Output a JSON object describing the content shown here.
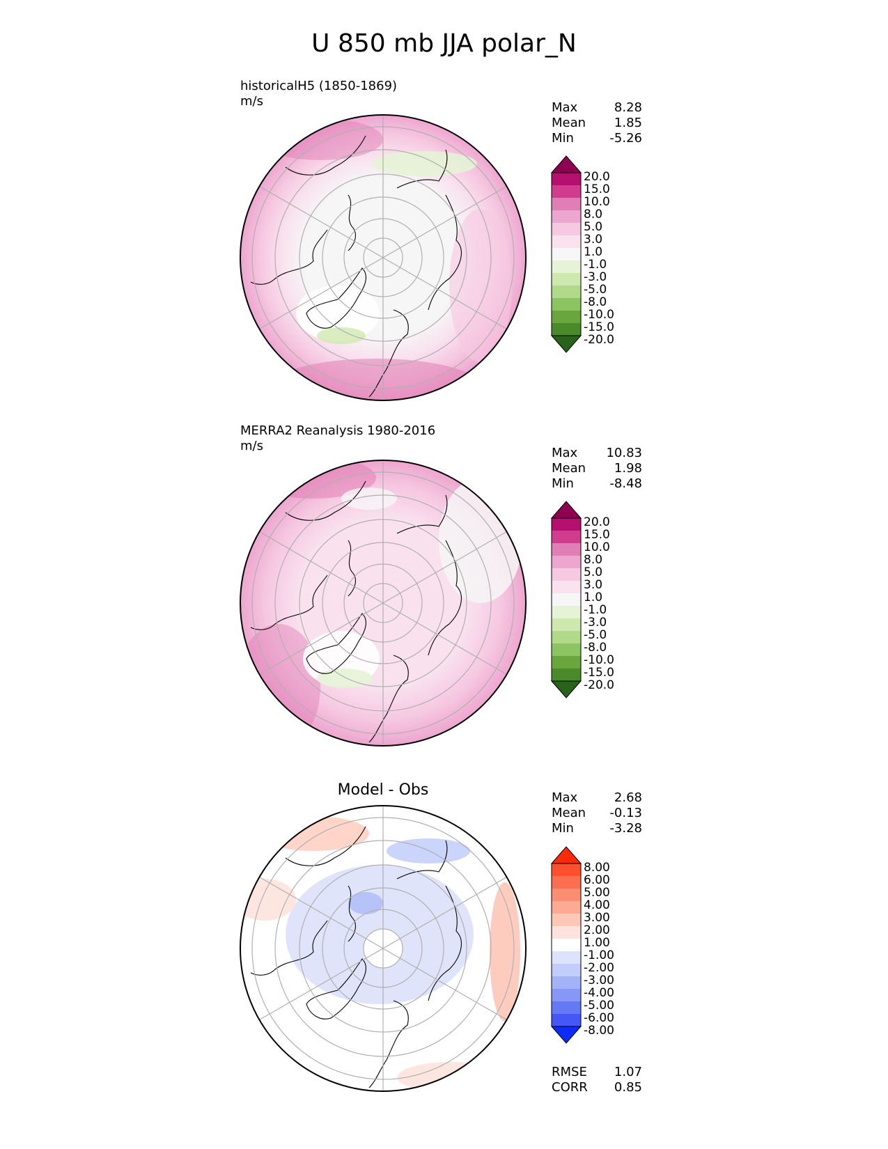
{
  "title": "U 850 mb JJA polar_N",
  "chart_data": [
    {
      "type": "heatmap",
      "projection": "north-polar-stereographic",
      "label": "historicalH5 (1850-1869)",
      "units": "m/s",
      "stats": {
        "max_label": "Max",
        "max": "8.28",
        "mean_label": "Mean",
        "mean": "1.85",
        "min_label": "Min",
        "min": "-5.26"
      },
      "colorbar": {
        "levels": [
          "20.0",
          "15.0",
          "10.0",
          "8.0",
          "5.0",
          "3.0",
          "1.0",
          "-1.0",
          "-3.0",
          "-5.0",
          "-8.0",
          "-10.0",
          "-15.0",
          "-20.0"
        ],
        "colors": [
          "#8e0152",
          "#b5106f",
          "#d13c8f",
          "#e07fb5",
          "#eda6cf",
          "#f6c8e1",
          "#f9e1ee",
          "#f6f6f6",
          "#e6f3d6",
          "#cfe8b0",
          "#b1d98a",
          "#8cc462",
          "#6aa63e",
          "#4a8a2a",
          "#276419"
        ]
      }
    },
    {
      "type": "heatmap",
      "projection": "north-polar-stereographic",
      "label": "MERRA2 Reanalysis 1980-2016",
      "units": "m/s",
      "stats": {
        "max_label": "Max",
        "max": "10.83",
        "mean_label": "Mean",
        "mean": "1.98",
        "min_label": "Min",
        "min": "-8.48"
      },
      "colorbar": {
        "levels": [
          "20.0",
          "15.0",
          "10.0",
          "8.0",
          "5.0",
          "3.0",
          "1.0",
          "-1.0",
          "-3.0",
          "-5.0",
          "-8.0",
          "-10.0",
          "-15.0",
          "-20.0"
        ],
        "colors": [
          "#8e0152",
          "#b5106f",
          "#d13c8f",
          "#e07fb5",
          "#eda6cf",
          "#f6c8e1",
          "#f9e1ee",
          "#f6f6f6",
          "#e6f3d6",
          "#cfe8b0",
          "#b1d98a",
          "#8cc462",
          "#6aa63e",
          "#4a8a2a",
          "#276419"
        ]
      }
    },
    {
      "type": "heatmap",
      "projection": "north-polar-stereographic",
      "title": "Model - Obs",
      "stats": {
        "max_label": "Max",
        "max": "2.68",
        "mean_label": "Mean",
        "mean": "-0.13",
        "min_label": "Min",
        "min": "-3.28"
      },
      "metrics": {
        "rmse_label": "RMSE",
        "rmse": "1.07",
        "corr_label": "CORR",
        "corr": "0.85"
      },
      "colorbar": {
        "levels": [
          "8.00",
          "6.00",
          "5.00",
          "4.00",
          "3.00",
          "2.00",
          "1.00",
          "-1.00",
          "-2.00",
          "-3.00",
          "-4.00",
          "-5.00",
          "-6.00",
          "-8.00"
        ],
        "colors": [
          "#ff2a0a",
          "#ff4f2e",
          "#fb6e50",
          "#fb8d72",
          "#fcaa94",
          "#fdc7b6",
          "#fde3db",
          "#ffffff",
          "#dde3fb",
          "#c2cdf9",
          "#a4b3f7",
          "#8697f6",
          "#6579f5",
          "#4558f6",
          "#0a2cff"
        ]
      }
    }
  ]
}
